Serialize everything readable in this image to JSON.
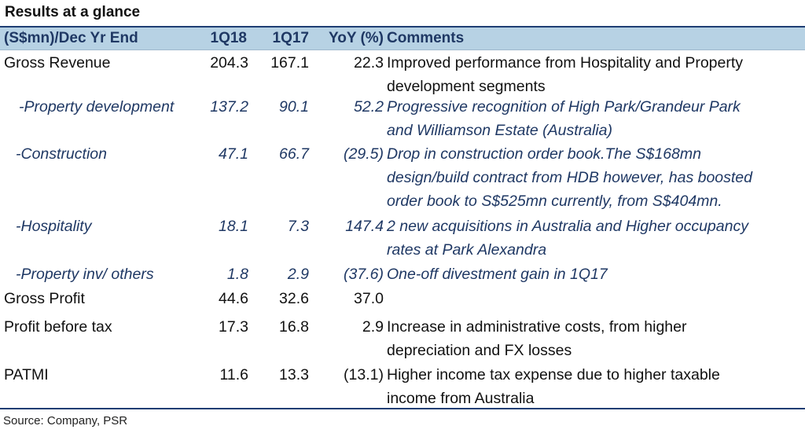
{
  "title": "Results at a glance",
  "header": {
    "label": "(S$mn)/Dec Yr End",
    "col1": "1Q18",
    "col2": "1Q17",
    "col3": "YoY (%)",
    "comments": "Comments"
  },
  "rows": [
    {
      "label": "Gross Revenue",
      "v1": "204.3",
      "v2": "167.1",
      "v3": "22.3",
      "comment_lines": [
        "Improved performance from Hospitality and Property",
        "development segments"
      ]
    },
    {
      "label": "-Property development",
      "v1": "137.2",
      "v2": "90.1",
      "v3": "52.2",
      "comment_lines": [
        "Progressive recognition of High Park/Grandeur Park",
        "and Williamson Estate (Australia)"
      ]
    },
    {
      "label": "-Construction",
      "v1": "47.1",
      "v2": "66.7",
      "v3": "(29.5)",
      "comment_lines": [
        "Drop in construction order book.The S$168mn",
        "design/build contract from HDB however, has boosted",
        "order book to S$525mn currently, from S$404mn."
      ]
    },
    {
      "label": "-Hospitality",
      "v1": "18.1",
      "v2": "7.3",
      "v3": "147.4",
      "comment_lines": [
        "2 new acquisitions in Australia and Higher occupancy",
        "rates at Park Alexandra"
      ]
    },
    {
      "label": "-Property inv/ others",
      "v1": "1.8",
      "v2": "2.9",
      "v3": "(37.6)",
      "comment_lines": [
        "One-off divestment gain in 1Q17"
      ]
    },
    {
      "label": "Gross Profit",
      "v1": "44.6",
      "v2": "32.6",
      "v3": "37.0",
      "comment_lines": []
    },
    {
      "label": "Profit before tax",
      "v1": "17.3",
      "v2": "16.8",
      "v3": "2.9",
      "comment_lines": [
        "Increase in administrative costs, from higher",
        "depreciation and FX losses"
      ]
    },
    {
      "label": "PATMI",
      "v1": "11.6",
      "v2": "13.3",
      "v3": "(13.1)",
      "comment_lines": [
        "Higher income tax expense due to higher taxable",
        "income from Australia"
      ]
    }
  ],
  "source": "Source: Company, PSR",
  "colors": {
    "header_bg": "#b7d2e4",
    "header_text": "#1f3864",
    "sub_text": "#1f3864",
    "rule": "#1f3d73"
  }
}
